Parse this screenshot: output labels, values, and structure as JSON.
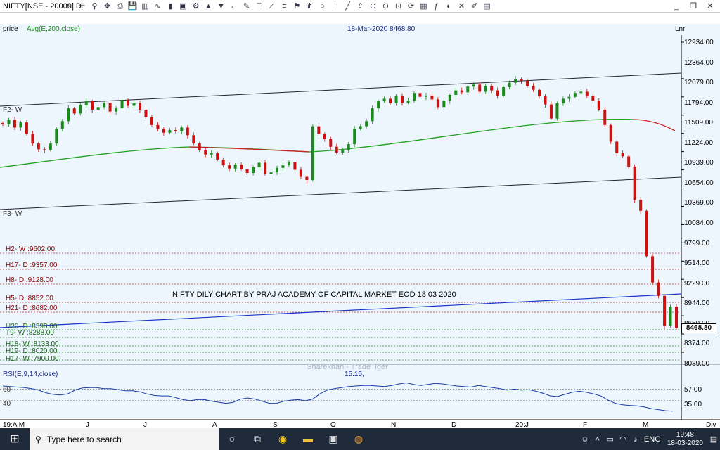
{
  "window": {
    "title": "NIFTY[NSE - 20000] D",
    "min": "_",
    "restore": "❐",
    "close": "✕"
  },
  "toolbar_icons": [
    "cursor",
    "crosshair",
    "zoom",
    "pan",
    "print",
    "save",
    "bar-chart",
    "line-chart",
    "candle-chart",
    "cube",
    "settings",
    "arrow-up",
    "arrow-down",
    "ruler",
    "pen",
    "text",
    "fib-fan",
    "channel",
    "flag",
    "pitchfork",
    "circle",
    "rectangle",
    "trend",
    "export",
    "zoom-in",
    "zoom-out",
    "zoom-fit",
    "refresh",
    "calendar",
    "indicator",
    "color",
    "delete",
    "brush",
    "layout"
  ],
  "header": {
    "price": "price",
    "avg": "Avg(E,200,close)",
    "date": "18-Mar-2020 8468.80",
    "scale": "Lnr"
  },
  "levels": [
    {
      "text": "H2- W :9602.00",
      "color": "red"
    },
    {
      "text": "H17- D :9357.00",
      "color": "red"
    },
    {
      "text": "H8- D :9128.00",
      "color": "red"
    },
    {
      "text": "H5- D :8852.00",
      "color": "red"
    },
    {
      "text": "H21- D :8682.00",
      "color": "red"
    },
    {
      "text": "H20- D :8398.00",
      "color": "green"
    },
    {
      "text": "T9- W :8288.00",
      "color": "green"
    },
    {
      "text": "H18- W :8133.00",
      "color": "green"
    },
    {
      "text": "H19- D :8020.00",
      "color": "green"
    },
    {
      "text": "H17- W :7900.00",
      "color": "green"
    }
  ],
  "fib_labels": [
    "F2- W",
    "F3- W"
  ],
  "y_axis": [
    "12934.00",
    "12364.00",
    "12079.00",
    "11794.00",
    "11509.00",
    "11224.00",
    "10939.00",
    "10654.00",
    "10369.00",
    "10084.00",
    "9799.00",
    "9514.00",
    "9229.00",
    "8944.00",
    "8659.00",
    "8374.00",
    "8089.00"
  ],
  "current_price": "8468.80",
  "annotation": "NIFTY DILY CHART BY PRAJ ACADEMY OF CAPITAL MARKET EOD 18 03 2020",
  "watermark": "Sharekhan - TradeTiger",
  "rsi": {
    "label": "RSI(E,9,14,close)",
    "value": "15.15,",
    "left_levels": [
      "60",
      "40"
    ],
    "right_levels": [
      "57.00",
      "35.00"
    ]
  },
  "x_axis": [
    "19:A M",
    "J",
    "J",
    "A",
    "S",
    "O",
    "N",
    "D",
    "20:J",
    "F",
    "M",
    "Div"
  ],
  "taskbar": {
    "search_placeholder": "Type here to search",
    "lang": "ENG",
    "time": "19:48",
    "date": "18-03-2020"
  },
  "colors": {
    "chart_bg": "#eef6fd",
    "ema_green": "#1fa01f",
    "ema_red": "#cc1f1f",
    "trend_blue": "#1a35c9",
    "candle_up": "#1a8a1a",
    "candle_down": "#cc1111"
  },
  "chart_data": {
    "type": "line",
    "y_axis_ticks": [
      12934,
      12364,
      12079,
      11794,
      11509,
      11224,
      10939,
      10654,
      10369,
      10084,
      9799,
      9514,
      9229,
      8944,
      8659,
      8374,
      8089
    ],
    "last_close": 8468.8,
    "closes": [
      11650,
      11720,
      11600,
      11680,
      11500,
      11350,
      11260,
      11250,
      11350,
      11580,
      11700,
      11900,
      11820,
      11950,
      12010,
      11880,
      11920,
      11980,
      11850,
      11900,
      12030,
      11940,
      11980,
      11880,
      11760,
      11640,
      11580,
      11520,
      11560,
      11540,
      11600,
      11480,
      11350,
      11250,
      11180,
      11200,
      11100,
      11010,
      10960,
      11020,
      10950,
      10890,
      10980,
      11050,
      10870,
      10900,
      10970,
      11010,
      11060,
      10940,
      10830,
      10780,
      11620,
      11500,
      11420,
      11300,
      11210,
      11250,
      11340,
      11580,
      11620,
      11700,
      11900,
      12010,
      12050,
      11980,
      12100,
      11990,
      12020,
      12140,
      12080,
      12100,
      12040,
      11920,
      12020,
      12110,
      12180,
      12150,
      12240,
      12270,
      12160,
      12250,
      12180,
      12100,
      12230,
      12300,
      12360,
      12330,
      12250,
      12190,
      12090,
      11960,
      11740,
      11980,
      12050,
      12080,
      12140,
      12160,
      12100,
      12020,
      11880,
      11640,
      11380,
      11200,
      11150,
      10990,
      10470,
      10300,
      9590,
      9180,
      8970,
      8500,
      8800,
      8468.8
    ],
    "rsi": [
      63,
      62,
      61,
      60,
      58,
      55,
      50,
      47,
      46,
      48,
      55,
      59,
      60,
      60,
      58,
      58,
      56,
      54,
      54,
      52,
      48,
      45,
      44,
      44,
      41,
      37,
      35,
      37,
      37,
      34,
      32,
      30,
      32,
      38,
      40,
      38,
      34,
      30,
      30,
      34,
      36,
      37,
      35,
      38,
      48,
      55,
      58,
      60,
      62,
      63,
      64,
      64,
      63,
      62,
      64,
      67,
      69,
      66,
      64,
      66,
      68,
      67,
      65,
      63,
      62,
      61,
      64,
      62,
      60,
      58,
      55,
      57,
      55,
      56,
      53,
      49,
      44,
      43,
      47,
      51,
      53,
      51,
      48,
      44,
      36,
      30,
      27,
      26,
      25,
      23,
      20,
      18,
      16,
      15.15
    ]
  }
}
